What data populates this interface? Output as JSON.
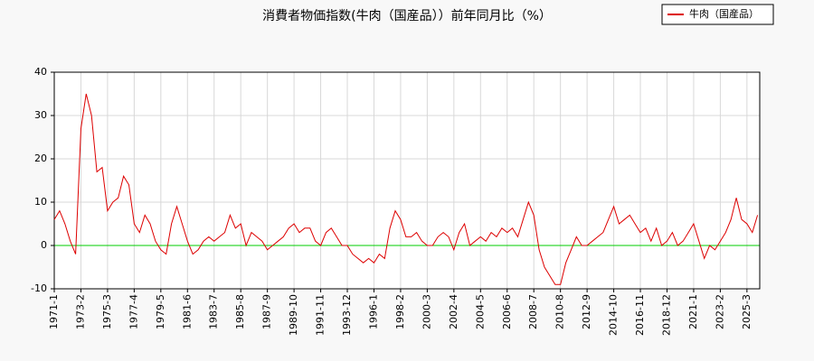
{
  "chart_data": {
    "type": "line",
    "title": "消費者物価指数(牛肉（国産品））前年同月比（%）",
    "categories": [
      "1971-1",
      null,
      null,
      null,
      null,
      "1973-2",
      null,
      null,
      null,
      null,
      "1975-3",
      null,
      null,
      null,
      null,
      "1977-4",
      null,
      null,
      null,
      null,
      "1979-5",
      null,
      null,
      null,
      null,
      "1981-6",
      null,
      null,
      null,
      null,
      "1983-7",
      null,
      null,
      null,
      null,
      "1985-8",
      null,
      null,
      null,
      null,
      "1987-9",
      null,
      null,
      null,
      null,
      "1989-10",
      null,
      null,
      null,
      null,
      "1991-11",
      null,
      null,
      null,
      null,
      "1993-12",
      null,
      null,
      null,
      null,
      "1996-1",
      null,
      null,
      null,
      null,
      "1998-2",
      null,
      null,
      null,
      null,
      "2000-3",
      null,
      null,
      null,
      null,
      "2002-4",
      null,
      null,
      null,
      null,
      "2004-5",
      null,
      null,
      null,
      null,
      "2006-6",
      null,
      null,
      null,
      null,
      "2008-7",
      null,
      null,
      null,
      null,
      "2010-8",
      null,
      null,
      null,
      null,
      "2012-9",
      null,
      null,
      null,
      null,
      "2014-10",
      null,
      null,
      null,
      null,
      "2016-11",
      null,
      null,
      null,
      null,
      "2018-12",
      null,
      null,
      null,
      null,
      "2021-1",
      null,
      null,
      null,
      null,
      "2023-2",
      null,
      null,
      null,
      null,
      "2025-3",
      null,
      null
    ],
    "series": [
      {
        "name": "牛肉（国産品）",
        "color": "#dd0000",
        "values": [
          6,
          8,
          5,
          1,
          -2,
          27,
          35,
          30,
          17,
          18,
          8,
          10,
          11,
          16,
          14,
          5,
          3,
          7,
          5,
          1,
          -1,
          -2,
          5,
          9,
          5,
          1,
          -2,
          -1,
          1,
          2,
          1,
          2,
          3,
          7,
          4,
          5,
          0,
          3,
          2,
          1,
          -1,
          0,
          1,
          2,
          4,
          5,
          3,
          4,
          4,
          1,
          0,
          3,
          4,
          2,
          0,
          0,
          -2,
          -3,
          -4,
          -3,
          -4,
          -2,
          -3,
          4,
          8,
          6,
          2,
          2,
          3,
          1,
          0,
          0,
          2,
          3,
          2,
          -1,
          3,
          5,
          0,
          1,
          2,
          1,
          3,
          2,
          4,
          3,
          4,
          2,
          6,
          10,
          7,
          -1,
          -5,
          -7,
          -9,
          -9,
          -4,
          -1,
          2,
          0,
          0,
          1,
          2,
          3,
          6,
          9,
          5,
          6,
          7,
          5,
          3,
          4,
          1,
          4,
          0,
          1,
          3,
          0,
          1,
          3,
          5,
          1,
          -3,
          0,
          -1,
          1,
          3,
          6,
          11,
          6,
          5,
          3,
          7
        ]
      }
    ],
    "ylim": [
      -10,
      40
    ],
    "yticks": [
      -10,
      0,
      10,
      20,
      30,
      40
    ],
    "grid": true,
    "baseline": 0,
    "baseline_color": "#00cc00",
    "legend": "top-right"
  }
}
